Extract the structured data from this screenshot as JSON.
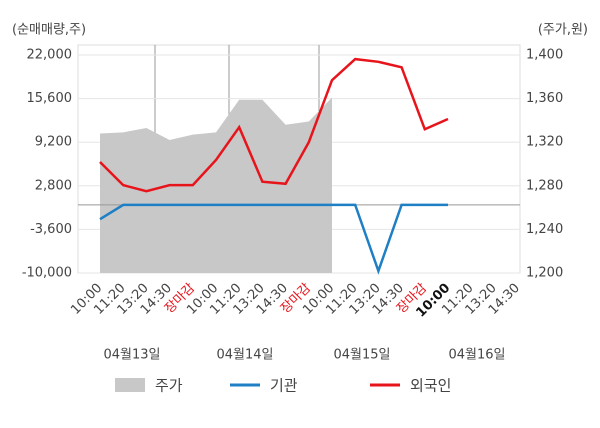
{
  "chart_data": {
    "type": "line",
    "y_label": "(순매매량,주)",
    "y2_label": "(주가,원)",
    "categories": [
      "10:00",
      "11:20",
      "13:20",
      "14:30",
      "장마감",
      "10:00",
      "11:20",
      "13:20",
      "14:30",
      "장마감",
      "10:00",
      "11:20",
      "13:20",
      "14:30",
      "장마감",
      "10:00",
      "11:20",
      "13:20",
      "14:30"
    ],
    "dates": [
      "04월13일",
      "04월14일",
      "04월15일",
      "04월16일"
    ],
    "series": [
      {
        "name": "주가",
        "color": "#c8c8c8",
        "axis": "y2",
        "area": true,
        "values": [
          1328,
          1329,
          1333,
          1322,
          1327,
          1329,
          1359,
          1359,
          1336,
          1339,
          1361,
          null,
          null,
          null,
          null,
          null,
          null,
          null,
          null
        ]
      },
      {
        "name": "기관",
        "color": "#1f7fc4",
        "values": [
          -2100,
          0,
          0,
          0,
          0,
          0,
          0,
          0,
          0,
          0,
          0,
          0,
          -9700,
          0,
          0,
          0,
          null,
          null,
          null
        ]
      },
      {
        "name": "외국인",
        "color": "#e8141c",
        "values": [
          6300,
          2900,
          2000,
          2900,
          2900,
          6600,
          11400,
          3400,
          3100,
          9200,
          18300,
          21400,
          21000,
          20200,
          11100,
          12600,
          null,
          null,
          null
        ]
      }
    ],
    "ylim": [
      -10000,
      22000
    ],
    "yticks": [
      {
        "value": -10000,
        "label": "-10,000"
      },
      {
        "value": -3600,
        "label": "-3,600"
      },
      {
        "value": 2800,
        "label": "2,800"
      },
      {
        "value": 9200,
        "label": "9,200"
      },
      {
        "value": 15600,
        "label": "15,600"
      },
      {
        "value": 22000,
        "label": "22,000"
      }
    ],
    "y2lim": [
      1200,
      1400
    ],
    "y2ticks": [
      {
        "value": 1200,
        "label": "1,200"
      },
      {
        "value": 1240,
        "label": "1,240"
      },
      {
        "value": 1280,
        "label": "1,280"
      },
      {
        "value": 1320,
        "label": "1,320"
      },
      {
        "value": 1360,
        "label": "1,360"
      },
      {
        "value": 1400,
        "label": "1,400"
      }
    ],
    "grid": true
  }
}
